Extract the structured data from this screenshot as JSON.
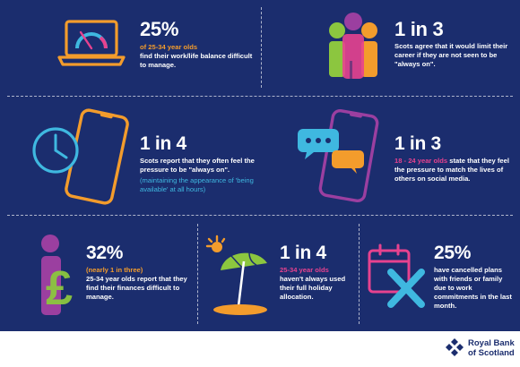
{
  "stats": {
    "worklife": {
      "value": "25%",
      "highlight": "of 25-34 year olds",
      "text": "find their work/life balance difficult to manage."
    },
    "career": {
      "value": "1 in 3",
      "text": "Scots agree that it would limit their career if they are not seen to be \"always on\"."
    },
    "pressure": {
      "value": "1 in 4",
      "text": "Scots report that they often feel the pressure to be \"always on\".",
      "note": "(maintaining the appearance of 'being available' at all hours)"
    },
    "social": {
      "value": "1 in 3",
      "highlight": "18 - 24 year olds",
      "text_inline": "state",
      "text": "that they feel the pressure to match the lives of others on social media."
    },
    "finances": {
      "value": "32%",
      "highlight": "(nearly 1 in three)",
      "text": "25-34 year olds report that they find their finances difficult to manage."
    },
    "holiday": {
      "value": "1 in 4",
      "highlight": "25-34 year olds",
      "text": "haven't always used their full holiday allocation."
    },
    "plans": {
      "value": "25%",
      "text": "have cancelled plans with friends or family due to work commitments in the last month."
    }
  },
  "footer": {
    "logo_line1": "Royal Bank",
    "logo_line2": "of Scotland"
  },
  "colors": {
    "background": "#1b2d6e",
    "orange": "#f39c2c",
    "pink": "#e7428f",
    "green": "#8cc63f",
    "blue": "#3fb8e0",
    "purple": "#9b3fa0"
  },
  "icons": [
    "laptop-gauge-icon",
    "people-group-icon",
    "clock-phone-icon",
    "phone-chat-icon",
    "pound-person-icon",
    "beach-umbrella-icon",
    "calendar-cross-icon",
    "rbs-logo-icon"
  ]
}
